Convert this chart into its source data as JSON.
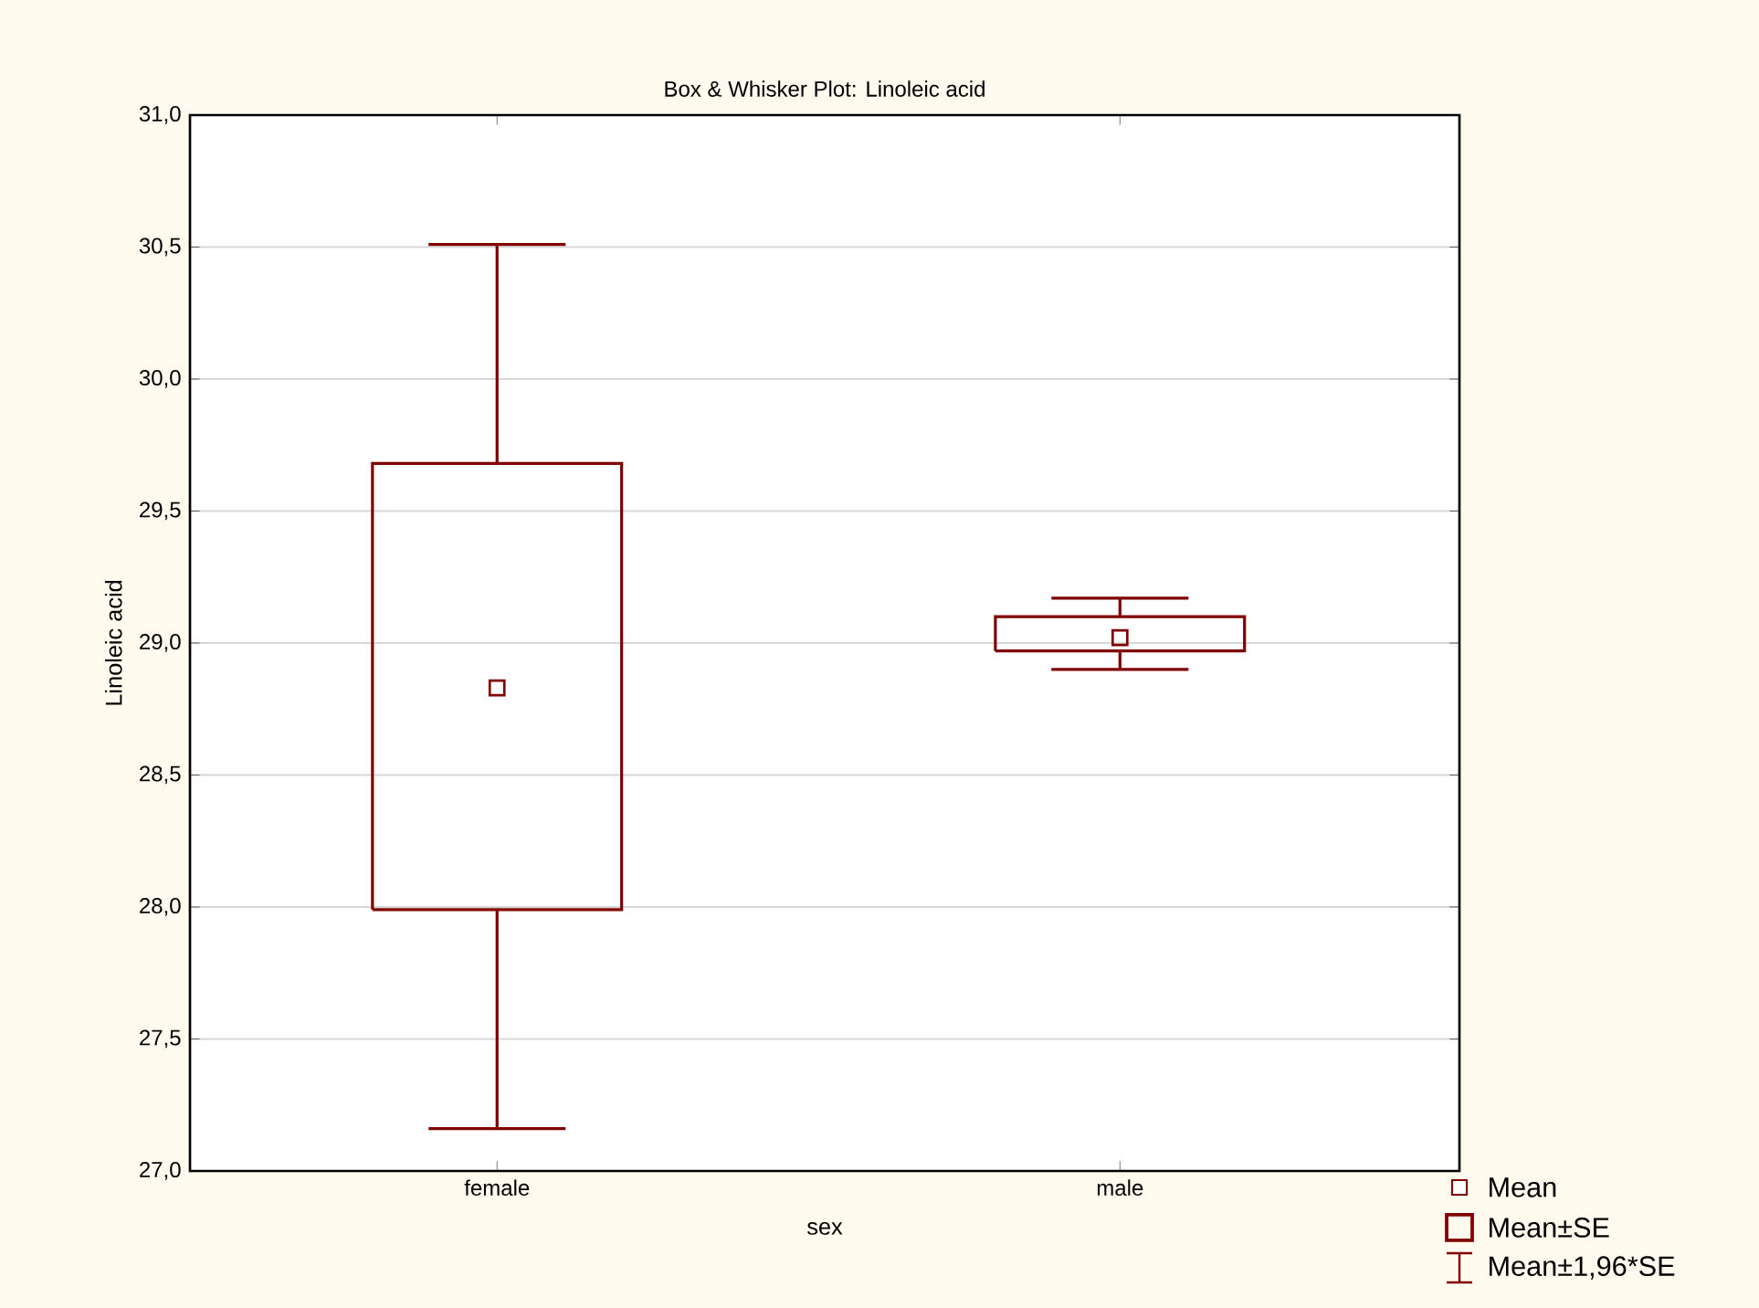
{
  "chart_data": {
    "type": "box",
    "title": "Box & Whisker Plot: Linoleic acid",
    "xlabel": "sex",
    "ylabel": "Linoleic acid",
    "categories": [
      "female",
      "male"
    ],
    "boxes": [
      {
        "low": 27.16,
        "q1": 27.99,
        "median": 28.83,
        "q3": 29.68,
        "high": 30.51
      },
      {
        "low": 28.9,
        "q1": 28.97,
        "median": 29.02,
        "q3": 29.1,
        "high": 29.17
      }
    ],
    "color": "#800000",
    "ylim": [
      27,
      31
    ],
    "yticks": [
      {
        "value": 27,
        "label": "27,0"
      },
      {
        "value": 27.5,
        "label": "27,5"
      },
      {
        "value": 28,
        "label": "28,0"
      },
      {
        "value": 28.5,
        "label": "28,5"
      },
      {
        "value": 29,
        "label": "29,0"
      },
      {
        "value": 29.5,
        "label": "29,5"
      },
      {
        "value": 30,
        "label": "30,0"
      },
      {
        "value": 30.5,
        "label": "30,5"
      },
      {
        "value": 31,
        "label": "31,0"
      }
    ],
    "grid": "y",
    "marker": "square",
    "annotations": [
      "Mean",
      "Mean±SE",
      "Mean±1,96*SE"
    ]
  }
}
